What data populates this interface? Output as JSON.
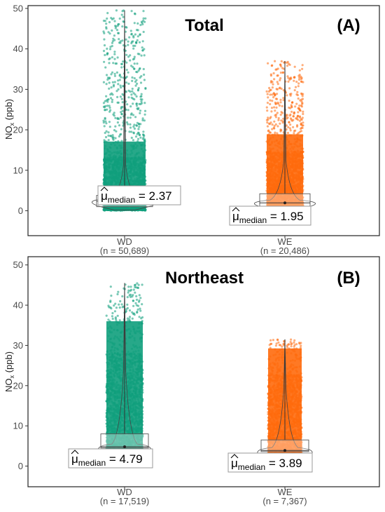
{
  "chart_data": [
    {
      "panel": "A",
      "type": "scatter",
      "title": "Total",
      "tag": "(A)",
      "ylabel": "NO",
      "ylabel_sub": "x",
      "ylabel_unit": " (ppb)",
      "ylim": [
        -2,
        50
      ],
      "yticks": [
        0,
        10,
        20,
        30,
        40,
        50
      ],
      "grid": false,
      "groups": [
        {
          "name": "WD",
          "n_label": "(n = 50,689)",
          "color": "#0f9e7c",
          "max": 49.5,
          "q1": 1.0,
          "median": 2.37,
          "q3": 3.8,
          "violin_width": 0.62,
          "ann_symbol": "μ",
          "ann_sub": "median",
          "ann_value": "= 2.37"
        },
        {
          "name": "WE",
          "n_label": "(n = 20,486)",
          "color": "#ff6a0c",
          "max": 37.0,
          "q1": 1.0,
          "median": 1.95,
          "q3": 4.2,
          "violin_width": 0.58,
          "ann_symbol": "μ",
          "ann_sub": "median",
          "ann_value": "= 1.95"
        }
      ]
    },
    {
      "panel": "B",
      "type": "scatter",
      "title": "Northeast",
      "tag": "(B)",
      "ylabel": "NO",
      "ylabel_sub": "x",
      "ylabel_unit": " (ppb)",
      "ylim": [
        -2,
        51
      ],
      "yticks": [
        0,
        10,
        20,
        30,
        40,
        50
      ],
      "grid": false,
      "groups": [
        {
          "name": "WD",
          "n_label": "(n = 17,519)",
          "color": "#0f9e7c",
          "max": 45.5,
          "q1": 4.5,
          "median": 4.79,
          "q3": 8.0,
          "violin_width": 0.5,
          "ann_symbol": "μ",
          "ann_sub": "median",
          "ann_value": "= 4.79"
        },
        {
          "name": "WE",
          "n_label": "(n = 7,367)",
          "color": "#ff6a0c",
          "max": 31.5,
          "q1": 3.6,
          "median": 3.89,
          "q3": 6.5,
          "violin_width": 0.52,
          "ann_symbol": "μ",
          "ann_sub": "median",
          "ann_value": "= 3.89"
        }
      ]
    }
  ]
}
